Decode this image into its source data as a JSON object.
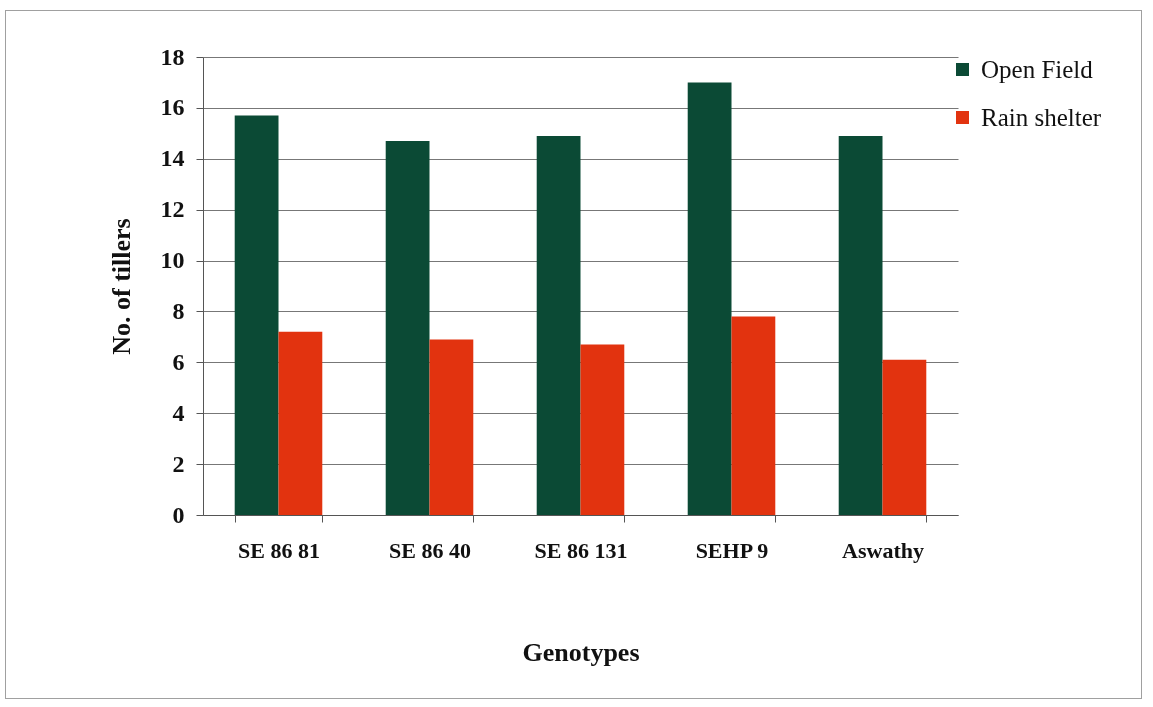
{
  "chart_data": {
    "type": "bar",
    "xlabel": "Genotypes",
    "ylabel": "No. of tillers",
    "categories": [
      "SE 86 81",
      "SE 86 40",
      "SE 86 131",
      "SEHP 9",
      "Aswathy"
    ],
    "series": [
      {
        "name": "Open Field",
        "color": "#0b4a35",
        "values": [
          15.7,
          14.7,
          14.9,
          17.0,
          14.9
        ]
      },
      {
        "name": "Rain shelter",
        "color": "#e2330f",
        "values": [
          7.2,
          6.9,
          6.7,
          7.8,
          6.1
        ]
      }
    ],
    "ylim": [
      0,
      18
    ],
    "yticks": [
      0,
      2,
      4,
      6,
      8,
      10,
      12,
      14,
      16,
      18
    ],
    "grid": "y",
    "legend": "top right"
  }
}
